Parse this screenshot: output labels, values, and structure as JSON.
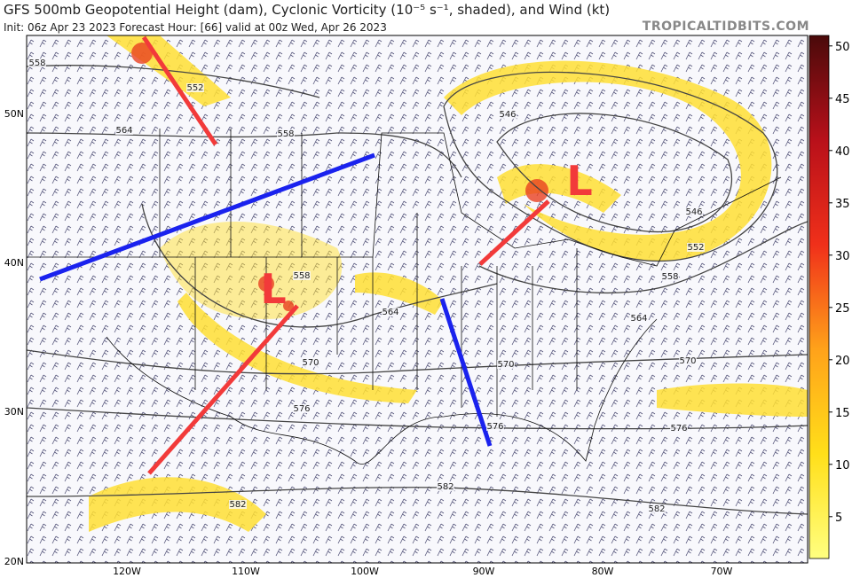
{
  "header": {
    "title": "GFS 500mb Geopotential Height (dam), Cyclonic Vorticity (10⁻⁵ s⁻¹, shaded), and Wind (kt)",
    "subtitle": "Init: 06z Apr 23 2023   Forecast Hour: [66]   valid at 00z Wed, Apr 26 2023",
    "brand": "TROPICALTIDBITS.COM"
  },
  "map": {
    "lat_labels": [
      "50N",
      "40N",
      "30N",
      "20N"
    ],
    "lon_labels": [
      "120W",
      "110W",
      "100W",
      "90W",
      "80W",
      "70W"
    ],
    "contour_labels": [
      "558",
      "552",
      "564",
      "558",
      "546",
      "546",
      "552",
      "558",
      "564",
      "558",
      "564",
      "570",
      "570",
      "576",
      "576",
      "570",
      "576",
      "582",
      "582",
      "582"
    ],
    "low_labels": [
      "L",
      "L"
    ]
  },
  "colorbar": {
    "range": [
      1,
      51
    ],
    "ticks": [
      5,
      10,
      15,
      20,
      25,
      30,
      35,
      40,
      45,
      50
    ]
  }
}
